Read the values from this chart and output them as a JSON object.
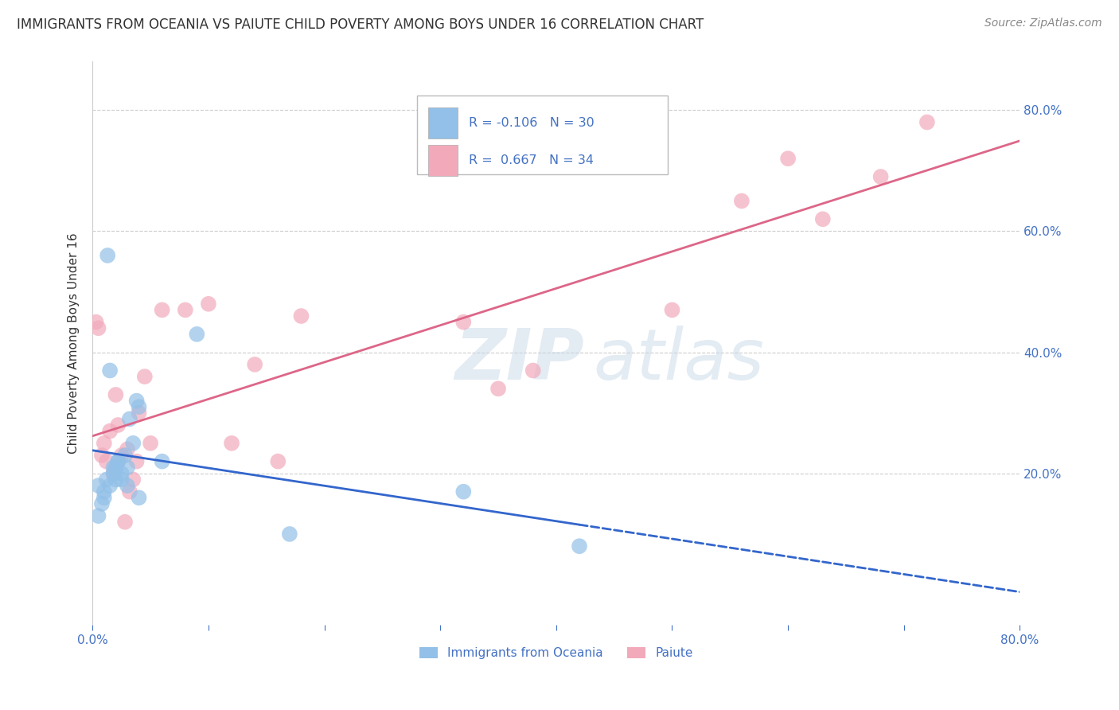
{
  "title": "IMMIGRANTS FROM OCEANIA VS PAIUTE CHILD POVERTY AMONG BOYS UNDER 16 CORRELATION CHART",
  "source": "Source: ZipAtlas.com",
  "ylabel": "Child Poverty Among Boys Under 16",
  "xlim": [
    0.0,
    0.8
  ],
  "ylim": [
    -0.05,
    0.88
  ],
  "ytick_right_labels": [
    "20.0%",
    "40.0%",
    "60.0%",
    "80.0%"
  ],
  "ytick_right_values": [
    0.2,
    0.4,
    0.6,
    0.8
  ],
  "legend_blue_label": "Immigrants from Oceania",
  "legend_pink_label": "Paiute",
  "R_blue": -0.106,
  "N_blue": 30,
  "R_pink": 0.667,
  "N_pink": 34,
  "blue_color": "#92C0E8",
  "pink_color": "#F2AABB",
  "blue_line_color": "#3366CC",
  "pink_line_color": "#DD6688",
  "blue_scatter_x": [
    0.005,
    0.01,
    0.012,
    0.015,
    0.018,
    0.02,
    0.022,
    0.025,
    0.028,
    0.03,
    0.032,
    0.035,
    0.038,
    0.04,
    0.005,
    0.008,
    0.01,
    0.013,
    0.015,
    0.018,
    0.02,
    0.022,
    0.025,
    0.03,
    0.04,
    0.06,
    0.09,
    0.17,
    0.32,
    0.42
  ],
  "blue_scatter_y": [
    0.18,
    0.16,
    0.19,
    0.18,
    0.21,
    0.19,
    0.22,
    0.19,
    0.23,
    0.21,
    0.29,
    0.25,
    0.32,
    0.31,
    0.13,
    0.15,
    0.17,
    0.56,
    0.37,
    0.2,
    0.21,
    0.22,
    0.2,
    0.18,
    0.16,
    0.22,
    0.43,
    0.1,
    0.17,
    0.08
  ],
  "pink_scatter_x": [
    0.003,
    0.005,
    0.008,
    0.01,
    0.012,
    0.015,
    0.018,
    0.02,
    0.022,
    0.025,
    0.028,
    0.03,
    0.032,
    0.035,
    0.038,
    0.04,
    0.045,
    0.05,
    0.06,
    0.08,
    0.1,
    0.12,
    0.14,
    0.16,
    0.18,
    0.32,
    0.35,
    0.38,
    0.5,
    0.56,
    0.6,
    0.63,
    0.68,
    0.72
  ],
  "pink_scatter_y": [
    0.45,
    0.44,
    0.23,
    0.25,
    0.22,
    0.27,
    0.2,
    0.33,
    0.28,
    0.23,
    0.12,
    0.24,
    0.17,
    0.19,
    0.22,
    0.3,
    0.36,
    0.25,
    0.47,
    0.47,
    0.48,
    0.25,
    0.38,
    0.22,
    0.46,
    0.45,
    0.34,
    0.37,
    0.47,
    0.65,
    0.72,
    0.62,
    0.69,
    0.78
  ]
}
